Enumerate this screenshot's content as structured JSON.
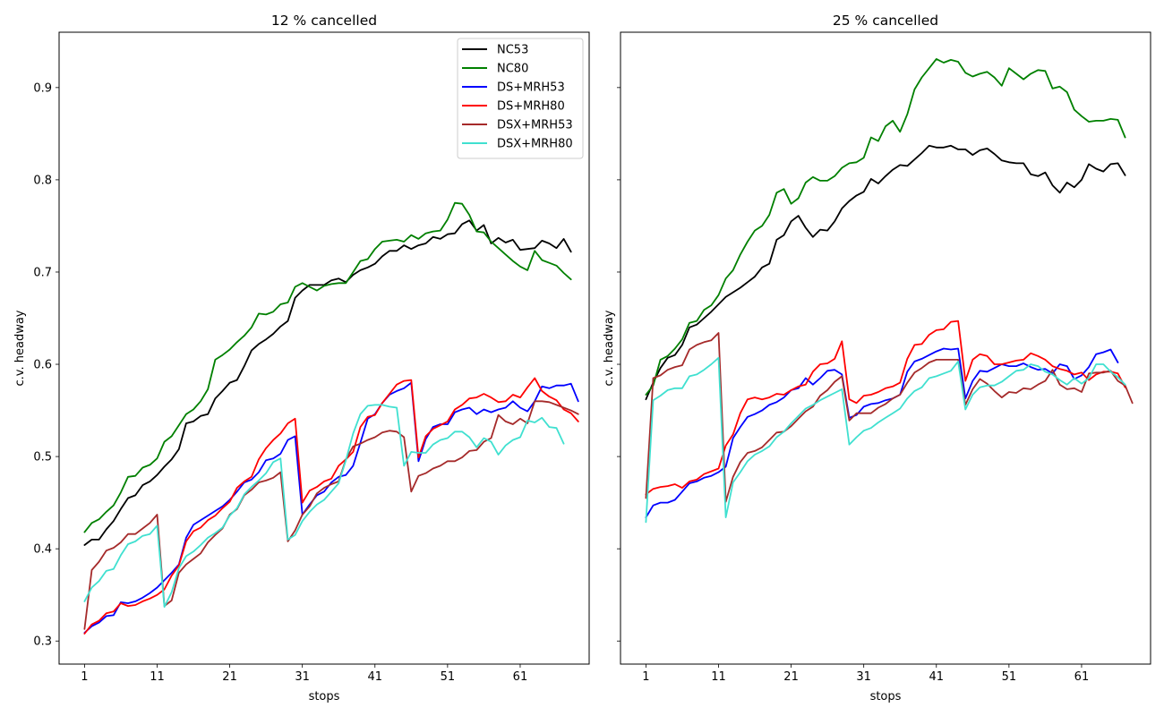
{
  "chart_data": [
    {
      "type": "line",
      "title": "12 % cancelled",
      "xlabel": "stops",
      "ylabel": "c.v. headway",
      "xlim": [
        -2.5,
        70.5
      ],
      "ylim": [
        0.275,
        0.96
      ],
      "xticks": [
        1,
        11,
        21,
        31,
        41,
        51,
        61
      ],
      "yticks": [
        0.3,
        0.4,
        0.5,
        0.6,
        0.7,
        0.8,
        0.9
      ],
      "show_yticklabels": true,
      "legend": "top-right",
      "x_start": 1,
      "series": [
        {
          "name": "NC53",
          "color": "#000000",
          "values": [
            0.404,
            0.41,
            0.41,
            0.421,
            0.43,
            0.443,
            0.455,
            0.458,
            0.469,
            0.473,
            0.48,
            0.489,
            0.497,
            0.508,
            0.536,
            0.538,
            0.544,
            0.546,
            0.563,
            0.571,
            0.58,
            0.583,
            0.598,
            0.615,
            0.622,
            0.627,
            0.633,
            0.641,
            0.647,
            0.672,
            0.68,
            0.686,
            0.686,
            0.686,
            0.691,
            0.693,
            0.689,
            0.697,
            0.702,
            0.705,
            0.709,
            0.717,
            0.723,
            0.723,
            0.729,
            0.725,
            0.729,
            0.731,
            0.738,
            0.736,
            0.741,
            0.742,
            0.752,
            0.756,
            0.745,
            0.751,
            0.731,
            0.737,
            0.732,
            0.735,
            0.724,
            0.725,
            0.726,
            0.734,
            0.731,
            0.726,
            0.736,
            0.722
          ]
        },
        {
          "name": "NC80",
          "color": "#008000",
          "values": [
            0.418,
            0.428,
            0.432,
            0.44,
            0.447,
            0.461,
            0.478,
            0.479,
            0.488,
            0.491,
            0.498,
            0.516,
            0.522,
            0.534,
            0.546,
            0.551,
            0.56,
            0.573,
            0.605,
            0.61,
            0.616,
            0.624,
            0.631,
            0.64,
            0.655,
            0.654,
            0.657,
            0.665,
            0.667,
            0.684,
            0.688,
            0.684,
            0.68,
            0.685,
            0.687,
            0.688,
            0.688,
            0.7,
            0.712,
            0.714,
            0.725,
            0.733,
            0.734,
            0.735,
            0.733,
            0.74,
            0.736,
            0.742,
            0.744,
            0.745,
            0.757,
            0.775,
            0.774,
            0.762,
            0.744,
            0.743,
            0.733,
            0.726,
            0.719,
            0.712,
            0.706,
            0.702,
            0.723,
            0.713,
            0.71,
            0.707,
            0.699,
            0.692
          ]
        },
        {
          "name": "DS+MRH53",
          "color": "#0000ff",
          "values": [
            0.309,
            0.316,
            0.32,
            0.327,
            0.328,
            0.342,
            0.341,
            0.343,
            0.347,
            0.352,
            0.358,
            0.366,
            0.374,
            0.383,
            0.412,
            0.426,
            0.431,
            0.436,
            0.441,
            0.446,
            0.453,
            0.462,
            0.472,
            0.475,
            0.483,
            0.496,
            0.498,
            0.503,
            0.518,
            0.522,
            0.437,
            0.448,
            0.458,
            0.462,
            0.472,
            0.478,
            0.48,
            0.49,
            0.515,
            0.541,
            0.546,
            0.558,
            0.567,
            0.571,
            0.574,
            0.58,
            0.495,
            0.519,
            0.532,
            0.535,
            0.535,
            0.548,
            0.551,
            0.553,
            0.546,
            0.551,
            0.548,
            0.551,
            0.553,
            0.56,
            0.553,
            0.549,
            0.56,
            0.576,
            0.574,
            0.577,
            0.577,
            0.579,
            0.56
          ]
        },
        {
          "name": "DS+MRH80",
          "color": "#ff0000",
          "values": [
            0.308,
            0.318,
            0.322,
            0.33,
            0.332,
            0.341,
            0.338,
            0.339,
            0.343,
            0.346,
            0.35,
            0.356,
            0.371,
            0.382,
            0.408,
            0.419,
            0.423,
            0.431,
            0.436,
            0.444,
            0.451,
            0.466,
            0.473,
            0.478,
            0.497,
            0.509,
            0.518,
            0.525,
            0.536,
            0.541,
            0.45,
            0.463,
            0.467,
            0.473,
            0.476,
            0.49,
            0.497,
            0.505,
            0.532,
            0.543,
            0.545,
            0.558,
            0.568,
            0.578,
            0.582,
            0.583,
            0.499,
            0.522,
            0.53,
            0.534,
            0.538,
            0.551,
            0.556,
            0.563,
            0.564,
            0.568,
            0.564,
            0.559,
            0.56,
            0.567,
            0.564,
            0.575,
            0.585,
            0.571,
            0.565,
            0.561,
            0.551,
            0.547,
            0.538
          ]
        },
        {
          "name": "DSX+MRH53",
          "color": "#a52a2a",
          "values": [
            0.313,
            0.377,
            0.386,
            0.398,
            0.401,
            0.407,
            0.416,
            0.416,
            0.422,
            0.428,
            0.437,
            0.338,
            0.344,
            0.374,
            0.383,
            0.389,
            0.395,
            0.407,
            0.415,
            0.422,
            0.437,
            0.443,
            0.458,
            0.464,
            0.472,
            0.474,
            0.477,
            0.483,
            0.408,
            0.42,
            0.437,
            0.446,
            0.46,
            0.466,
            0.47,
            0.473,
            0.497,
            0.511,
            0.514,
            0.518,
            0.521,
            0.526,
            0.528,
            0.527,
            0.521,
            0.462,
            0.479,
            0.482,
            0.487,
            0.49,
            0.495,
            0.495,
            0.499,
            0.506,
            0.507,
            0.516,
            0.52,
            0.545,
            0.538,
            0.535,
            0.541,
            0.536,
            0.56,
            0.56,
            0.559,
            0.556,
            0.553,
            0.55,
            0.546
          ]
        },
        {
          "name": "DSX+MRH80",
          "color": "#40e0d0",
          "values": [
            0.343,
            0.358,
            0.365,
            0.376,
            0.378,
            0.393,
            0.405,
            0.408,
            0.414,
            0.416,
            0.425,
            0.337,
            0.353,
            0.379,
            0.392,
            0.397,
            0.404,
            0.412,
            0.417,
            0.423,
            0.436,
            0.444,
            0.459,
            0.467,
            0.474,
            0.482,
            0.494,
            0.498,
            0.41,
            0.415,
            0.43,
            0.44,
            0.448,
            0.453,
            0.462,
            0.471,
            0.496,
            0.525,
            0.546,
            0.555,
            0.556,
            0.556,
            0.554,
            0.553,
            0.49,
            0.505,
            0.504,
            0.504,
            0.513,
            0.518,
            0.52,
            0.527,
            0.527,
            0.521,
            0.51,
            0.52,
            0.516,
            0.502,
            0.512,
            0.518,
            0.521,
            0.539,
            0.537,
            0.542,
            0.532,
            0.531,
            0.514
          ]
        }
      ]
    },
    {
      "type": "line",
      "title": "25 % cancelled",
      "xlabel": "stops",
      "ylabel": "c.v. headway",
      "xlim": [
        -2.5,
        70.5
      ],
      "ylim": [
        0.275,
        0.96
      ],
      "xticks": [
        1,
        11,
        21,
        31,
        41,
        51,
        61
      ],
      "yticks": [
        0.3,
        0.4,
        0.5,
        0.6,
        0.7,
        0.8,
        0.9
      ],
      "show_yticklabels": false,
      "legend": "none",
      "x_start": 1,
      "series": [
        {
          "name": "NC53",
          "color": "#000000",
          "values": [
            0.562,
            0.58,
            0.596,
            0.607,
            0.61,
            0.621,
            0.64,
            0.643,
            0.65,
            0.657,
            0.665,
            0.673,
            0.678,
            0.683,
            0.689,
            0.695,
            0.705,
            0.709,
            0.735,
            0.74,
            0.755,
            0.761,
            0.748,
            0.738,
            0.746,
            0.745,
            0.755,
            0.769,
            0.777,
            0.783,
            0.787,
            0.801,
            0.796,
            0.804,
            0.811,
            0.816,
            0.815,
            0.822,
            0.829,
            0.837,
            0.835,
            0.835,
            0.837,
            0.833,
            0.833,
            0.827,
            0.832,
            0.834,
            0.828,
            0.821,
            0.819,
            0.818,
            0.818,
            0.806,
            0.804,
            0.808,
            0.794,
            0.786,
            0.797,
            0.792,
            0.8,
            0.817,
            0.812,
            0.809,
            0.817,
            0.818,
            0.805
          ]
        },
        {
          "name": "NC80",
          "color": "#008000",
          "values": [
            0.567,
            0.577,
            0.605,
            0.609,
            0.617,
            0.627,
            0.645,
            0.647,
            0.659,
            0.664,
            0.675,
            0.693,
            0.702,
            0.719,
            0.733,
            0.745,
            0.75,
            0.762,
            0.786,
            0.79,
            0.774,
            0.78,
            0.797,
            0.803,
            0.799,
            0.799,
            0.804,
            0.813,
            0.818,
            0.819,
            0.824,
            0.846,
            0.842,
            0.858,
            0.864,
            0.852,
            0.871,
            0.898,
            0.911,
            0.921,
            0.931,
            0.927,
            0.93,
            0.928,
            0.916,
            0.912,
            0.915,
            0.917,
            0.911,
            0.902,
            0.921,
            0.915,
            0.909,
            0.915,
            0.919,
            0.918,
            0.899,
            0.901,
            0.895,
            0.876,
            0.869,
            0.863,
            0.864,
            0.864,
            0.866,
            0.865,
            0.846
          ]
        },
        {
          "name": "DS+MRH53",
          "color": "#0000ff",
          "values": [
            0.434,
            0.447,
            0.45,
            0.45,
            0.453,
            0.462,
            0.471,
            0.473,
            0.477,
            0.479,
            0.483,
            0.489,
            0.52,
            0.532,
            0.543,
            0.546,
            0.55,
            0.556,
            0.559,
            0.564,
            0.572,
            0.574,
            0.585,
            0.578,
            0.585,
            0.593,
            0.594,
            0.589,
            0.542,
            0.545,
            0.554,
            0.557,
            0.558,
            0.561,
            0.563,
            0.567,
            0.592,
            0.603,
            0.606,
            0.61,
            0.614,
            0.617,
            0.616,
            0.617,
            0.563,
            0.582,
            0.593,
            0.592,
            0.596,
            0.6,
            0.598,
            0.598,
            0.601,
            0.597,
            0.594,
            0.595,
            0.59,
            0.6,
            0.598,
            0.584,
            0.588,
            0.597,
            0.611,
            0.613,
            0.616,
            0.602
          ]
        },
        {
          "name": "DS+MRH80",
          "color": "#ff0000",
          "values": [
            0.459,
            0.465,
            0.467,
            0.468,
            0.47,
            0.466,
            0.473,
            0.475,
            0.481,
            0.484,
            0.487,
            0.512,
            0.524,
            0.547,
            0.562,
            0.564,
            0.562,
            0.564,
            0.568,
            0.567,
            0.572,
            0.576,
            0.578,
            0.592,
            0.6,
            0.601,
            0.606,
            0.625,
            0.562,
            0.558,
            0.566,
            0.567,
            0.57,
            0.574,
            0.576,
            0.58,
            0.606,
            0.621,
            0.622,
            0.632,
            0.637,
            0.638,
            0.646,
            0.647,
            0.582,
            0.605,
            0.611,
            0.609,
            0.6,
            0.6,
            0.602,
            0.604,
            0.605,
            0.612,
            0.609,
            0.605,
            0.598,
            0.595,
            0.593,
            0.589,
            0.591,
            0.583,
            0.589,
            0.592,
            0.592,
            0.59,
            0.575
          ]
        },
        {
          "name": "DSX+MRH53",
          "color": "#a52a2a",
          "values": [
            0.455,
            0.585,
            0.588,
            0.594,
            0.597,
            0.599,
            0.616,
            0.621,
            0.624,
            0.626,
            0.634,
            0.451,
            0.478,
            0.494,
            0.504,
            0.506,
            0.51,
            0.518,
            0.526,
            0.527,
            0.533,
            0.541,
            0.549,
            0.554,
            0.566,
            0.572,
            0.581,
            0.587,
            0.539,
            0.547,
            0.547,
            0.547,
            0.553,
            0.557,
            0.563,
            0.567,
            0.58,
            0.591,
            0.596,
            0.602,
            0.605,
            0.605,
            0.605,
            0.605,
            0.556,
            0.573,
            0.584,
            0.579,
            0.571,
            0.564,
            0.57,
            0.569,
            0.574,
            0.573,
            0.578,
            0.582,
            0.594,
            0.578,
            0.573,
            0.574,
            0.57,
            0.59,
            0.591,
            0.591,
            0.593,
            0.582,
            0.577,
            0.558
          ]
        },
        {
          "name": "DSX+MRH80",
          "color": "#40e0d0",
          "values": [
            0.429,
            0.561,
            0.566,
            0.572,
            0.574,
            0.574,
            0.587,
            0.589,
            0.594,
            0.6,
            0.607,
            0.434,
            0.472,
            0.483,
            0.495,
            0.502,
            0.506,
            0.511,
            0.521,
            0.527,
            0.536,
            0.544,
            0.552,
            0.556,
            0.561,
            0.565,
            0.569,
            0.573,
            0.513,
            0.521,
            0.528,
            0.531,
            0.537,
            0.542,
            0.547,
            0.552,
            0.563,
            0.571,
            0.575,
            0.585,
            0.587,
            0.59,
            0.593,
            0.603,
            0.551,
            0.567,
            0.575,
            0.577,
            0.577,
            0.581,
            0.587,
            0.593,
            0.594,
            0.6,
            0.598,
            0.592,
            0.589,
            0.583,
            0.578,
            0.585,
            0.579,
            0.585,
            0.6,
            0.6,
            0.592,
            0.586,
            0.578
          ]
        }
      ]
    }
  ]
}
